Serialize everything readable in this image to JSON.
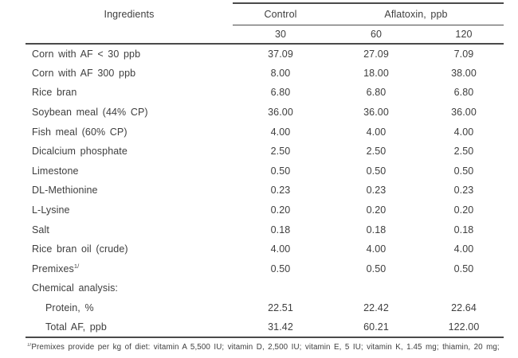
{
  "colors": {
    "text": "#3e3e3e",
    "rules": "#4a4a4a",
    "background": "#ffffff"
  },
  "table": {
    "ingredients_header": "Ingredients",
    "group_headers": {
      "control": "Control",
      "aflatoxin": "Aflatoxin, ppb"
    },
    "sub_headers": [
      "30",
      "60",
      "120"
    ],
    "rows": [
      {
        "label": "Corn with AF < 30 ppb",
        "values": [
          "37.09",
          "27.09",
          "7.09"
        ]
      },
      {
        "label": "Corn with AF 300 ppb",
        "values": [
          "8.00",
          "18.00",
          "38.00"
        ]
      },
      {
        "label": "Rice bran",
        "values": [
          "6.80",
          "6.80",
          "6.80"
        ]
      },
      {
        "label": "Soybean meal (44% CP)",
        "values": [
          "36.00",
          "36.00",
          "36.00"
        ]
      },
      {
        "label": "Fish meal (60% CP)",
        "values": [
          "4.00",
          "4.00",
          "4.00"
        ]
      },
      {
        "label": "Dicalcium phosphate",
        "values": [
          "2.50",
          "2.50",
          "2.50"
        ]
      },
      {
        "label": "Limestone",
        "values": [
          "0.50",
          "0.50",
          "0.50"
        ]
      },
      {
        "label": "DL-Methionine",
        "values": [
          "0.23",
          "0.23",
          "0.23"
        ]
      },
      {
        "label": "L-Lysine",
        "values": [
          "0.20",
          "0.20",
          "0.20"
        ]
      },
      {
        "label": "Salt",
        "values": [
          "0.18",
          "0.18",
          "0.18"
        ]
      },
      {
        "label": "Rice bran oil (crude)",
        "values": [
          "4.00",
          "4.00",
          "4.00"
        ]
      },
      {
        "label": "Premixes",
        "superscript": "1/",
        "values": [
          "0.50",
          "0.50",
          "0.50"
        ]
      },
      {
        "label": "Chemical analysis:",
        "values": [
          "",
          "",
          ""
        ]
      },
      {
        "label": "Protein, %",
        "indent": true,
        "values": [
          "22.51",
          "22.42",
          "22.64"
        ]
      },
      {
        "label": "Total AF, ppb",
        "indent": true,
        "values": [
          "31.42",
          "60.21",
          "122.00"
        ]
      }
    ],
    "footnote": {
      "superscript": "1/",
      "text": "Premixes provide per kg of diet: vitamin A 5,500 IU; vitamin D, 2,500 IU; vitamin E, 5 IU; vitamin K, 1.45 mg; thiamin, 20 mg;"
    }
  }
}
